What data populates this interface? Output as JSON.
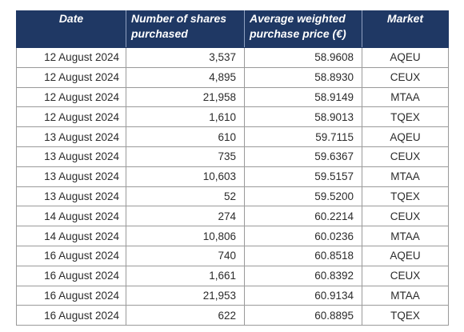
{
  "table": {
    "headers": [
      "Date",
      "Number of shares purchased",
      "Average weighted purchase price (€)",
      "Market"
    ],
    "rows": [
      {
        "date": "12 August 2024",
        "shares": "3,537",
        "price": "58.9608",
        "market": "AQEU"
      },
      {
        "date": "12 August 2024",
        "shares": "4,895",
        "price": "58.8930",
        "market": "CEUX"
      },
      {
        "date": "12 August 2024",
        "shares": "21,958",
        "price": "58.9149",
        "market": "MTAA"
      },
      {
        "date": "12 August 2024",
        "shares": "1,610",
        "price": "58.9013",
        "market": "TQEX"
      },
      {
        "date": "13 August 2024",
        "shares": "610",
        "price": "59.7115",
        "market": "AQEU"
      },
      {
        "date": "13 August 2024",
        "shares": "735",
        "price": "59.6367",
        "market": "CEUX"
      },
      {
        "date": "13 August 2024",
        "shares": "10,603",
        "price": "59.5157",
        "market": "MTAA"
      },
      {
        "date": "13 August 2024",
        "shares": "52",
        "price": "59.5200",
        "market": "TQEX"
      },
      {
        "date": "14 August 2024",
        "shares": "274",
        "price": "60.2214",
        "market": "CEUX"
      },
      {
        "date": "14 August 2024",
        "shares": "10,806",
        "price": "60.0236",
        "market": "MTAA"
      },
      {
        "date": "16 August 2024",
        "shares": "740",
        "price": "60.8518",
        "market": "AQEU"
      },
      {
        "date": "16 August 2024",
        "shares": "1,661",
        "price": "60.8392",
        "market": "CEUX"
      },
      {
        "date": "16 August 2024",
        "shares": "21,953",
        "price": "60.9134",
        "market": "MTAA"
      },
      {
        "date": "16 August 2024",
        "shares": "622",
        "price": "60.8895",
        "market": "TQEX"
      }
    ]
  },
  "colors": {
    "header_bg": "#1f3864",
    "header_text": "#ffffff",
    "cell_text": "#2b2b2b",
    "border": "#9a9a9a"
  }
}
